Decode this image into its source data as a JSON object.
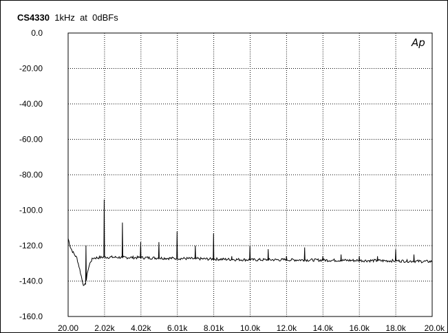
{
  "header": {
    "device": "CS4330",
    "freq": "1kHz",
    "sep": "at",
    "level": "0dBFs"
  },
  "watermark": "Ap",
  "chart_data": {
    "type": "line",
    "title": "CS4330 1kHz at 0dBFs",
    "xlabel": "",
    "ylabel": "",
    "xlim": [
      20,
      20000
    ],
    "ylim": [
      -160,
      0
    ],
    "grid": true,
    "xticks": [
      "20.00",
      "2.02k",
      "4.02k",
      "6.01k",
      "8.01k",
      "10.0k",
      "12.0k",
      "14.0k",
      "16.0k",
      "18.0k",
      "20.0k"
    ],
    "yticks": [
      "0.0",
      "-20.00",
      "-40.00",
      "-60.00",
      "-80.00",
      "-100.0",
      "-120.0",
      "-140.0",
      "-160.0"
    ],
    "series": [
      {
        "baseline": [
          [
            20,
            -116
          ],
          [
            150,
            -121
          ],
          [
            300,
            -124
          ],
          [
            500,
            -127
          ],
          [
            650,
            -133
          ],
          [
            800,
            -140
          ],
          [
            900,
            -143
          ],
          [
            1000,
            -141
          ],
          [
            1100,
            -134
          ],
          [
            1250,
            -129
          ],
          [
            1400,
            -127
          ],
          [
            2000,
            -126.5
          ],
          [
            4000,
            -126.8
          ],
          [
            6000,
            -127.2
          ],
          [
            8000,
            -127.6
          ],
          [
            10000,
            -128
          ],
          [
            12000,
            -128
          ],
          [
            14000,
            -128.2
          ],
          [
            16000,
            -128.4
          ],
          [
            18000,
            -128.6
          ],
          [
            20000,
            -129
          ]
        ],
        "spikes": [
          [
            1000,
            -120
          ],
          [
            2000,
            -94
          ],
          [
            3000,
            -107
          ],
          [
            4000,
            -118
          ],
          [
            5000,
            -118
          ],
          [
            6000,
            -112
          ],
          [
            7000,
            -120
          ],
          [
            8000,
            -113
          ],
          [
            9000,
            -126
          ],
          [
            10000,
            -120
          ],
          [
            11000,
            -122
          ],
          [
            12000,
            -126
          ],
          [
            13000,
            -121
          ],
          [
            14000,
            -126
          ],
          [
            15000,
            -125
          ],
          [
            16000,
            -126
          ],
          [
            17000,
            -126
          ],
          [
            18000,
            -122
          ],
          [
            19000,
            -125
          ]
        ]
      }
    ]
  }
}
